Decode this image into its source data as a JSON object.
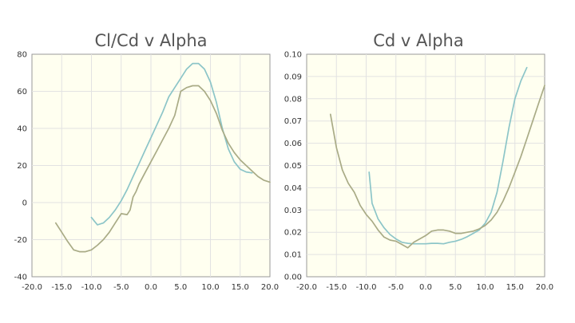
{
  "chart_data": [
    {
      "type": "line",
      "title": "Cl/Cd v Alpha",
      "xlabel": "",
      "ylabel": "",
      "xlim": [
        -20,
        20
      ],
      "ylim": [
        -40,
        80
      ],
      "xticks": [
        -20,
        -15,
        -10,
        -5,
        0,
        5,
        10,
        15,
        20
      ],
      "yticks": [
        -40,
        -20,
        0,
        20,
        40,
        60,
        80
      ],
      "xtick_labels": [
        "-20.0",
        "-15.0",
        "-10.0",
        "-5.0",
        "0.0",
        "5.0",
        "10.0",
        "15.0",
        "20.0"
      ],
      "ytick_labels": [
        "-40",
        "-20",
        "0",
        "20",
        "40",
        "60",
        "80"
      ],
      "grid": true,
      "colors": [
        "#8cc5c8",
        "#a9ab86"
      ],
      "series": [
        {
          "color": "#8cc5c8",
          "x": [
            -10,
            -9.5,
            -9,
            -8,
            -7,
            -6,
            -5,
            -4,
            -3,
            -2,
            -1,
            0,
            1,
            2,
            3,
            4,
            5,
            6,
            7,
            8,
            9,
            10,
            11,
            12,
            13,
            14,
            15,
            16,
            17
          ],
          "y": [
            -8,
            -10,
            -12,
            -11,
            -8,
            -4,
            1,
            7,
            14,
            21,
            28,
            35,
            42,
            49,
            57,
            62,
            67,
            72,
            75,
            75,
            72,
            65,
            54,
            40,
            29,
            22,
            18,
            16.5,
            16
          ]
        },
        {
          "color": "#a9ab86",
          "x": [
            -16,
            -15,
            -14,
            -13,
            -12,
            -11,
            -10,
            -9,
            -8,
            -7,
            -6,
            -5,
            -4,
            -3.5,
            -3,
            -2.5,
            -2,
            -1,
            0,
            1,
            2,
            3,
            4,
            5,
            6,
            7,
            8,
            9,
            10,
            11,
            12,
            13,
            14,
            15,
            16,
            17,
            18,
            19,
            20
          ],
          "y": [
            -11,
            -16,
            -21,
            -25.5,
            -26.5,
            -26.5,
            -25.5,
            -23,
            -20,
            -16,
            -11,
            -6,
            -6.5,
            -4,
            3,
            6,
            10,
            16,
            22,
            28,
            34,
            40,
            47,
            60,
            62,
            63,
            63,
            60,
            55,
            48,
            39,
            32,
            27,
            23,
            20,
            17,
            14,
            12,
            11
          ]
        }
      ]
    },
    {
      "type": "line",
      "title": "Cd v Alpha",
      "xlabel": "",
      "ylabel": "",
      "xlim": [
        -20,
        20
      ],
      "ylim": [
        0,
        0.1
      ],
      "xticks": [
        -20,
        -15,
        -10,
        -5,
        0,
        5,
        10,
        15,
        20
      ],
      "yticks": [
        0,
        0.01,
        0.02,
        0.03,
        0.04,
        0.05,
        0.06,
        0.07,
        0.08,
        0.09,
        0.1
      ],
      "xtick_labels": [
        "-20.0",
        "-15.0",
        "-10.0",
        "-5.0",
        "0.0",
        "5.0",
        "10.0",
        "15.0",
        "20.0"
      ],
      "ytick_labels": [
        "0.00",
        "0.01",
        "0.02",
        "0.03",
        "0.04",
        "0.05",
        "0.06",
        "0.07",
        "0.08",
        "0.09",
        "0.10"
      ],
      "grid": true,
      "colors": [
        "#8cc5c8",
        "#a9ab86"
      ],
      "series": [
        {
          "color": "#8cc5c8",
          "x": [
            -9.5,
            -9,
            -8,
            -7,
            -6,
            -5,
            -4,
            -3,
            -2,
            -1,
            0,
            1,
            2,
            3,
            4,
            5,
            6,
            7,
            8,
            9,
            10,
            11,
            12,
            13,
            14,
            15,
            16,
            17
          ],
          "y": [
            0.047,
            0.033,
            0.026,
            0.022,
            0.019,
            0.017,
            0.0155,
            0.015,
            0.0148,
            0.0148,
            0.0148,
            0.015,
            0.015,
            0.0148,
            0.0155,
            0.016,
            0.0168,
            0.018,
            0.0195,
            0.021,
            0.024,
            0.029,
            0.038,
            0.052,
            0.067,
            0.08,
            0.088,
            0.094
          ]
        },
        {
          "color": "#a9ab86",
          "x": [
            -16,
            -15,
            -14,
            -13,
            -12,
            -11,
            -10,
            -9,
            -8,
            -7,
            -6,
            -5,
            -4,
            -3,
            -2,
            -1,
            0,
            1,
            2,
            3,
            4,
            5,
            6,
            7,
            8,
            9,
            10,
            11,
            12,
            13,
            14,
            15,
            16,
            17,
            18,
            19,
            20
          ],
          "y": [
            0.073,
            0.058,
            0.048,
            0.042,
            0.038,
            0.032,
            0.028,
            0.025,
            0.021,
            0.0178,
            0.0165,
            0.016,
            0.0145,
            0.013,
            0.0155,
            0.017,
            0.0185,
            0.0205,
            0.021,
            0.021,
            0.0205,
            0.0195,
            0.0195,
            0.02,
            0.0205,
            0.0215,
            0.023,
            0.0255,
            0.029,
            0.034,
            0.04,
            0.047,
            0.054,
            0.062,
            0.07,
            0.078,
            0.086
          ]
        }
      ]
    }
  ]
}
